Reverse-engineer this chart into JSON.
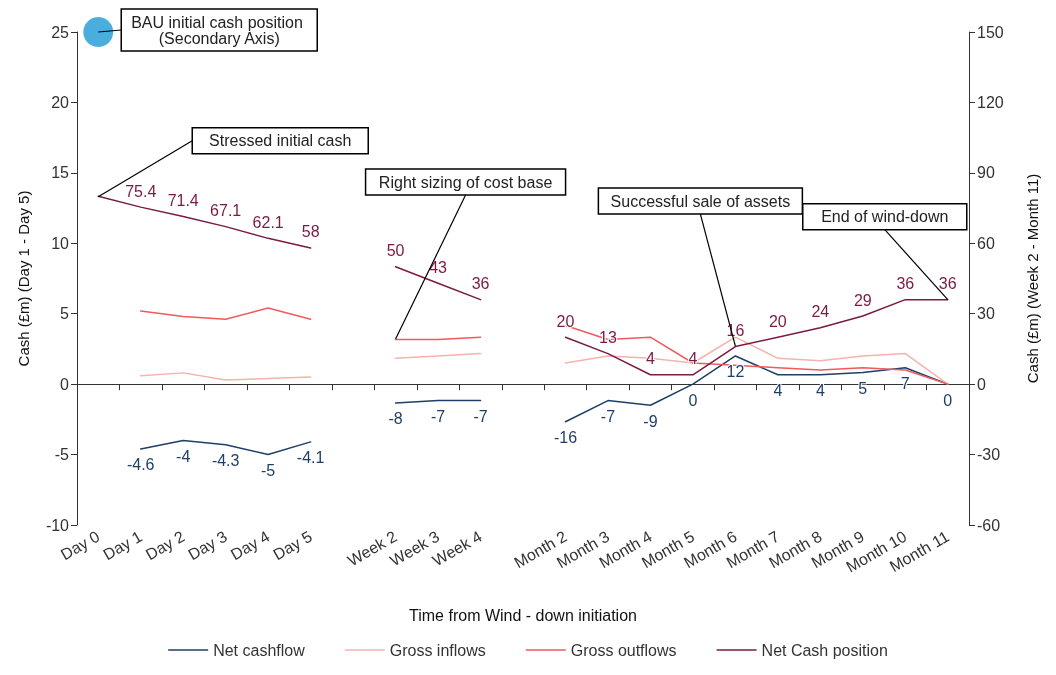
{
  "chart_data": {
    "type": "line",
    "xlabel": "Time from Wind - down initiation",
    "ylabel": "Cash (£m) (Day 1 - Day 5)",
    "y2label": "Cash (£m) (Week 2 - Month 11)",
    "categories": [
      "Day 0",
      "Day 1",
      "Day 2",
      "Day 3",
      "Day 4",
      "Day 5",
      null,
      "Week 2",
      "Week 3",
      "Week 4",
      null,
      "Month 2",
      "Month 3",
      "Month 4",
      "Month 5",
      "Month 6",
      "Month 7",
      "Month 8",
      "Month 9",
      "Month 10",
      "Month 11"
    ],
    "ylim": [
      -10,
      25
    ],
    "yticks": [
      -10,
      -5,
      0,
      5,
      10,
      15,
      20,
      25
    ],
    "y2lim": [
      -60,
      150
    ],
    "y2ticks": [
      -60,
      -30,
      0,
      30,
      60,
      90,
      120,
      150
    ],
    "legend": "bottom",
    "series": [
      {
        "name": "Net cashflow",
        "color": "#1f3f66",
        "axis": "y",
        "values": [
          null,
          -4.6,
          -4,
          -4.3,
          -5,
          -4.1,
          null,
          null,
          null,
          null,
          null,
          null,
          null,
          null,
          null,
          null,
          null,
          null,
          null,
          null,
          null
        ],
        "value_labels": [
          null,
          "-4.6",
          "-4",
          "-4.3",
          "-5",
          "-4.1",
          null,
          null,
          null,
          null,
          null,
          null,
          null,
          null,
          null,
          null,
          null,
          null,
          null,
          null,
          null
        ]
      },
      {
        "color": "#1f3f66",
        "axis": "y2",
        "values": [
          null,
          null,
          null,
          null,
          null,
          null,
          null,
          -8,
          -7,
          -7,
          null,
          -16,
          -7,
          -9,
          0,
          12,
          4,
          4,
          5,
          7,
          0
        ],
        "value_labels": [
          null,
          null,
          null,
          null,
          null,
          null,
          null,
          "-8",
          "-7",
          "-7",
          null,
          "-16",
          "-7",
          "-9",
          "0",
          "12",
          "4",
          "4",
          "5",
          "7",
          "0"
        ]
      },
      {
        "name": "Gross inflows",
        "color": "#f6b3ab",
        "axis": "y",
        "values": [
          null,
          0.6,
          0.8,
          0.3,
          0.4,
          0.5,
          null,
          null,
          null,
          null,
          null,
          null,
          null,
          null,
          null,
          null,
          null,
          null,
          null,
          null,
          null
        ]
      },
      {
        "color": "#f6b3ab",
        "axis": "y2",
        "values": [
          null,
          null,
          null,
          null,
          null,
          null,
          null,
          11,
          12,
          13,
          null,
          9,
          12,
          11,
          9,
          20,
          11,
          10,
          12,
          13,
          0
        ]
      },
      {
        "name": "Gross outflows",
        "color": "#ef5a5c",
        "axis": "y",
        "values": [
          null,
          5.2,
          4.8,
          4.6,
          5.4,
          4.6,
          null,
          null,
          null,
          null,
          null,
          null,
          null,
          null,
          null,
          null,
          null,
          null,
          null,
          null,
          null
        ]
      },
      {
        "color": "#ef5a5c",
        "axis": "y2",
        "values": [
          null,
          null,
          null,
          null,
          null,
          null,
          null,
          19,
          19,
          20,
          null,
          25,
          19,
          20,
          9,
          8,
          7,
          6,
          7,
          6,
          0
        ]
      },
      {
        "name": "Net Cash position",
        "color": "#7a1a45",
        "axis": "y2",
        "values": [
          80,
          75.4,
          71.4,
          67.1,
          62.1,
          58,
          null,
          50,
          43,
          36,
          null,
          20,
          13,
          4,
          4,
          16,
          20,
          24,
          29,
          36,
          36
        ],
        "value_labels": [
          null,
          "75.4",
          "71.4",
          "67.1",
          "62.1",
          "58",
          null,
          "50",
          "43",
          "36",
          null,
          "20",
          "13",
          "4",
          "4",
          "16",
          "20",
          "24",
          "29",
          "36",
          "36"
        ]
      },
      {
        "type": "scatter",
        "color": "#1b9ad6",
        "axis": "y2",
        "values": [
          150,
          null,
          null,
          null,
          null,
          null,
          null,
          null,
          null,
          null,
          null,
          null,
          null,
          null,
          null,
          null,
          null,
          null,
          null,
          null,
          null
        ]
      }
    ],
    "annotations": [
      {
        "text": "BAU initial cash position (Secondary Axis)",
        "x": "Day 0",
        "y": 25
      },
      {
        "text": "Stressed initial cash",
        "x": "Day 0",
        "y": 13.3
      },
      {
        "text": "Right sizing of cost base",
        "x": "Week 2",
        "y": 3.2
      },
      {
        "text": "Successful sale of assets",
        "x": "Month 6",
        "y": 2.7
      },
      {
        "text": "End of wind-down",
        "x": "Month 11",
        "y": 6
      }
    ]
  }
}
